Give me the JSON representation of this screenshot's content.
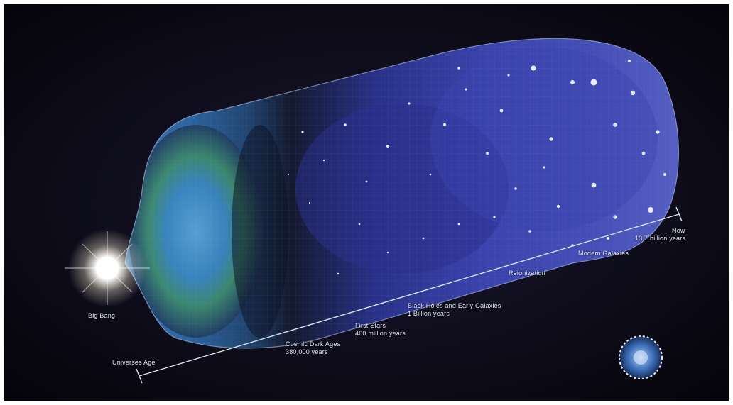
{
  "labels": {
    "big_bang": "Big Bang",
    "universe_age": "Universes Age",
    "now": "Now",
    "now_years": "13.7 billion years",
    "cosmic_dark_ages": "Cosmic Dark Ages",
    "cosmic_dark_ages_years": "380,000 years",
    "first_stars": "First Stars",
    "first_stars_years": "400 million years",
    "black_holes": "Black Holes and Early Galaxies",
    "black_holes_years": "1 Billion years",
    "reionization": "Reionization",
    "modern_galaxies": "Modern Galaxies"
  },
  "colors": {
    "background": "#0b0a16",
    "cmb_blue": "#2f6fb8",
    "cmb_green": "#4fa06a",
    "galaxy_purple": "#4a4fb8",
    "flash": "#ffffff",
    "timeline": "#d8e2f0"
  }
}
